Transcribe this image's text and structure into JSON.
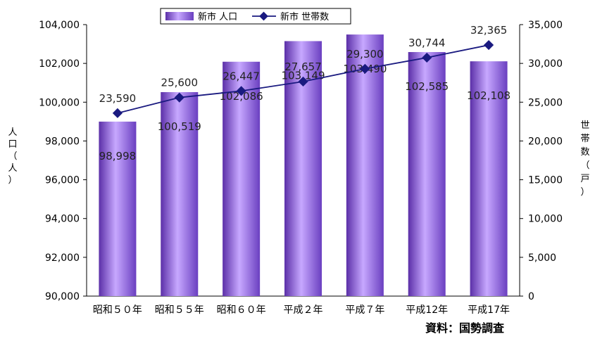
{
  "chart_data": {
    "type": "bar",
    "categories": [
      "昭和５０年",
      "昭和５５年",
      "昭和６０年",
      "平成２年",
      "平成７年",
      "平成12年",
      "平成17年"
    ],
    "series": [
      {
        "name": "新市 人口",
        "kind": "bar",
        "axis": "left",
        "values": [
          98998,
          100519,
          102086,
          103149,
          103490,
          102585,
          102108
        ],
        "labels": [
          "98,998",
          "100,519",
          "102,086",
          "103,149",
          "103,490",
          "102,585",
          "102,108"
        ],
        "color": "#9b6ee8"
      },
      {
        "name": "新市 世帯数",
        "kind": "line",
        "axis": "right",
        "values": [
          23590,
          25600,
          26447,
          27657,
          29300,
          30744,
          32365
        ],
        "labels": [
          "23,590",
          "25,600",
          "26,447",
          "27,657",
          "29,300",
          "30,744",
          "32,365"
        ],
        "color": "#1a1a80"
      }
    ],
    "y_left": {
      "label_chars": [
        "人",
        "口",
        "（",
        "人",
        "）"
      ],
      "ylim": [
        90000,
        104000
      ],
      "ticks": [
        90000,
        92000,
        94000,
        96000,
        98000,
        100000,
        102000,
        104000
      ],
      "tick_labels": [
        "90,000",
        "92,000",
        "94,000",
        "96,000",
        "98,000",
        "100,000",
        "102,000",
        "104,000"
      ]
    },
    "y_right": {
      "label_chars": [
        "世",
        "帯",
        "数",
        "（",
        "戸",
        "）"
      ],
      "ylim": [
        0,
        35000
      ],
      "ticks": [
        0,
        5000,
        10000,
        15000,
        20000,
        25000,
        30000,
        35000
      ],
      "tick_labels": [
        "0",
        "5,000",
        "10,000",
        "15,000",
        "20,000",
        "25,000",
        "30,000",
        "35,000"
      ]
    },
    "grid": false,
    "legend_position": "top-center"
  },
  "source": "資料：国勢調査"
}
